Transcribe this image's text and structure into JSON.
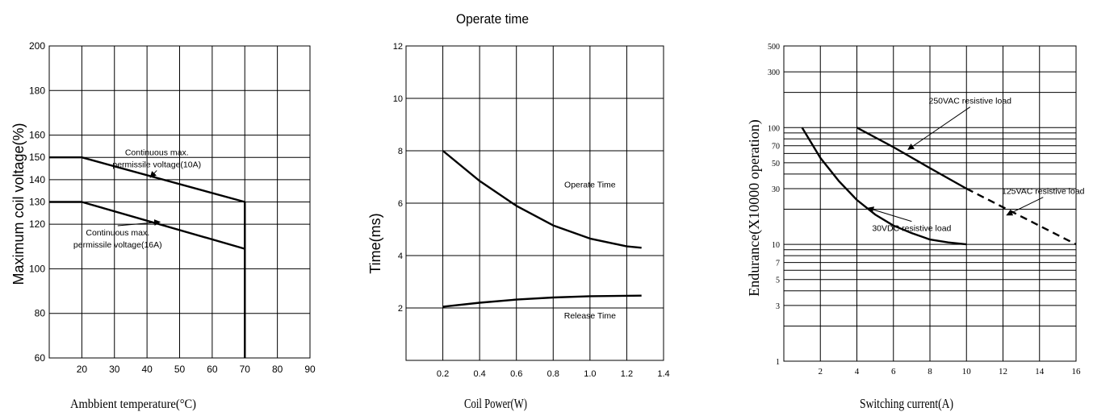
{
  "header": {
    "title": "Operate time"
  },
  "chart_data": [
    {
      "type": "line",
      "title": "",
      "xlabel": "Ambbient temperature(°C)",
      "ylabel": "Maximum coil voltage(%)",
      "xlim": [
        10,
        90
      ],
      "ylim": [
        60,
        200
      ],
      "x_ticks": [
        20,
        30,
        40,
        50,
        60,
        70,
        80,
        90
      ],
      "y_ticks": [
        60,
        80,
        100,
        120,
        130,
        140,
        150,
        160,
        180,
        200
      ],
      "grid": true,
      "series": [
        {
          "name": "",
          "points": [
            [
              10,
              150
            ],
            [
              20,
              150
            ],
            [
              70,
              130
            ],
            [
              70,
              60
            ]
          ],
          "dashed": false
        },
        {
          "name": "",
          "points": [
            [
              10,
              130
            ],
            [
              20,
              130
            ],
            [
              70,
              109
            ]
          ],
          "dashed": false
        }
      ],
      "annotations": [
        {
          "text_lines": [
            "Continuous max.",
            "permissile voltage(10A)"
          ],
          "x": 43,
          "y": 151,
          "arrow_to": [
            41,
            141
          ]
        },
        {
          "text_lines": [
            "Continuous max.",
            "permissile voltage(16A)"
          ],
          "x": 31,
          "y": 115,
          "arrow_to": [
            44,
            121
          ]
        }
      ]
    },
    {
      "type": "line",
      "title": "",
      "xlabel": "Coil Power(W)",
      "ylabel": "Time(ms)",
      "xlim": [
        0,
        1.4
      ],
      "ylim": [
        0,
        12
      ],
      "x_ticks": [
        0.2,
        0.4,
        0.6,
        0.8,
        1.0,
        1.2,
        1.4
      ],
      "y_ticks": [
        2,
        4,
        6,
        8,
        10,
        12
      ],
      "grid": true,
      "series": [
        {
          "name": "Operate Time",
          "points": [
            [
              0.2,
              8.0
            ],
            [
              0.4,
              6.85
            ],
            [
              0.6,
              5.9
            ],
            [
              0.8,
              5.15
            ],
            [
              1.0,
              4.65
            ],
            [
              1.2,
              4.35
            ],
            [
              1.28,
              4.3
            ]
          ],
          "dashed": false
        },
        {
          "name": "Release Time",
          "points": [
            [
              0.2,
              2.05
            ],
            [
              0.4,
              2.2
            ],
            [
              0.6,
              2.32
            ],
            [
              0.8,
              2.4
            ],
            [
              1.0,
              2.45
            ],
            [
              1.28,
              2.47
            ]
          ],
          "dashed": false
        }
      ],
      "annotations": [
        {
          "text_lines": [
            "Operate Time"
          ],
          "x": 1.0,
          "y": 6.6,
          "arrow_to": null
        },
        {
          "text_lines": [
            "Release Time"
          ],
          "x": 1.0,
          "y": 1.6,
          "arrow_to": null
        }
      ]
    },
    {
      "type": "line",
      "title": "",
      "xlabel": "Switching current(A)",
      "ylabel": "Endurance(X10000 operation)",
      "xlim": [
        0,
        16
      ],
      "ylim": [
        1,
        500
      ],
      "y_scale": "log",
      "x_ticks": [
        2,
        4,
        6,
        8,
        10,
        12,
        14,
        16
      ],
      "y_ticks": [
        1,
        3,
        5,
        7,
        10,
        30,
        50,
        70,
        100,
        300,
        500
      ],
      "grid": true,
      "series": [
        {
          "name": "",
          "points": [
            [
              4,
              100
            ],
            [
              6,
              68
            ],
            [
              8,
              45
            ],
            [
              10,
              30
            ]
          ],
          "dashed": false
        },
        {
          "name": "",
          "points": [
            [
              10,
              30
            ],
            [
              16,
              10
            ]
          ],
          "dashed": true
        },
        {
          "name": "",
          "points": [
            [
              1,
              100
            ],
            [
              2,
              55
            ],
            [
              3,
              35
            ],
            [
              4,
              24
            ],
            [
              5,
              18
            ],
            [
              6,
              14.5
            ],
            [
              7,
              12.5
            ],
            [
              8,
              11
            ],
            [
              9,
              10.4
            ],
            [
              10,
              10
            ]
          ],
          "dashed": false
        }
      ],
      "annotations": [
        {
          "text_lines": [
            "250VAC resistive load"
          ],
          "x": 10.2,
          "y": 160,
          "arrow_to": [
            6.8,
            65
          ]
        },
        {
          "text_lines": [
            "125VAC resistive load"
          ],
          "x": 14.2,
          "y": 27,
          "arrow_to": [
            12.2,
            17.8
          ]
        },
        {
          "text_lines": [
            "30VDC resistive load"
          ],
          "x": 7,
          "y": 13,
          "arrow_to": [
            4.6,
            20.5
          ]
        }
      ]
    }
  ]
}
